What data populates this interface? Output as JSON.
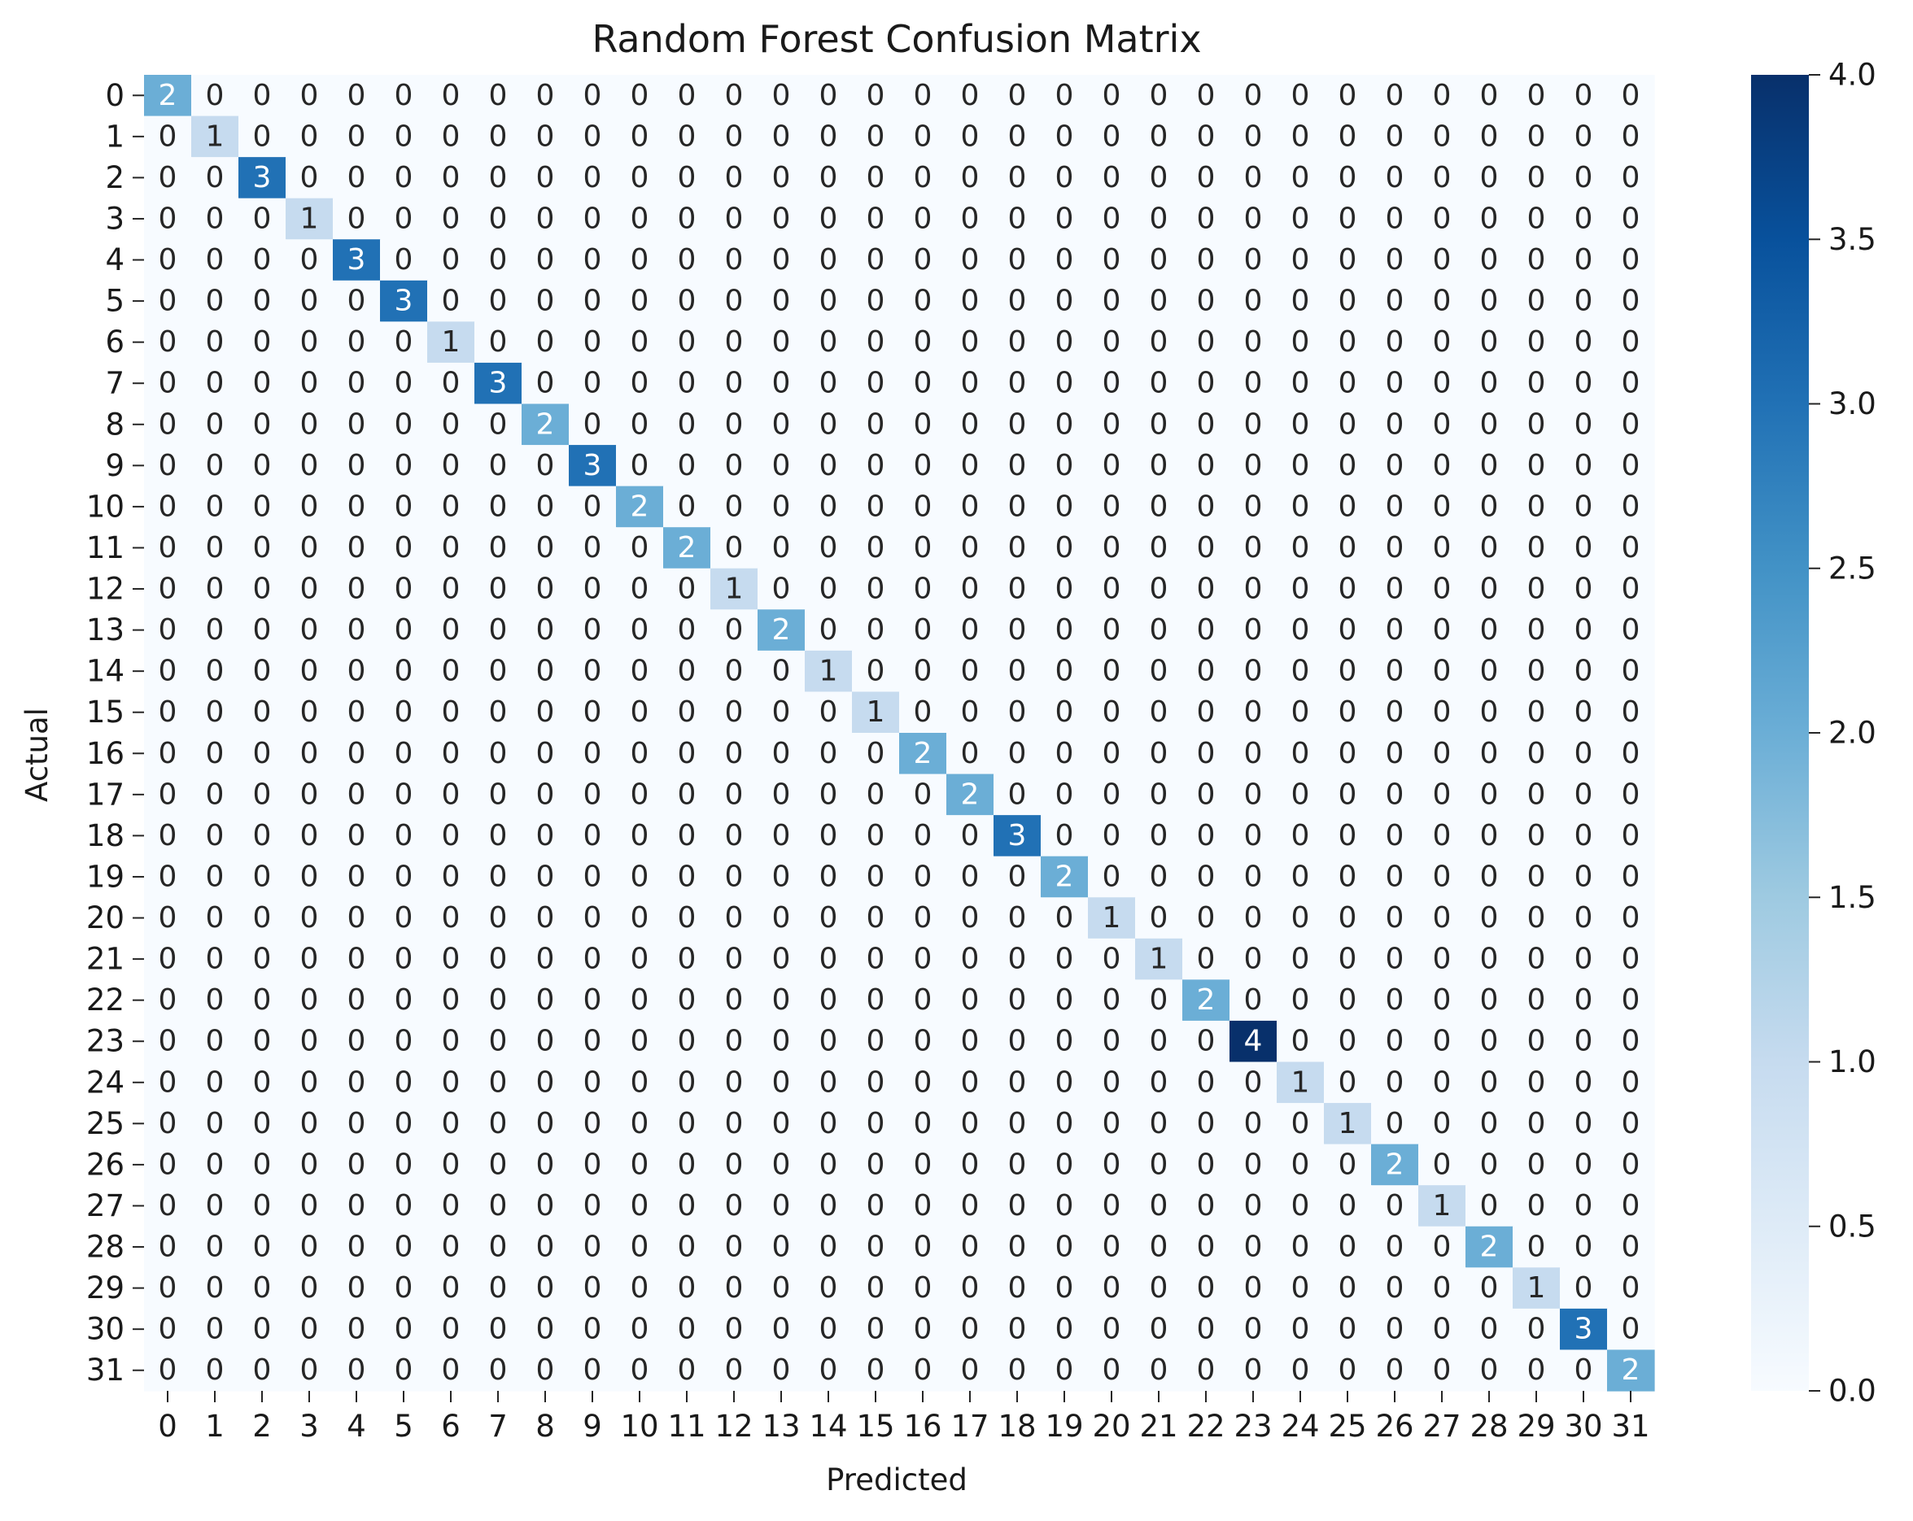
{
  "chart_data": {
    "type": "heatmap",
    "title": "Random Forest Confusion Matrix",
    "xlabel": "Predicted",
    "ylabel": "Actual",
    "x_categories": [
      "0",
      "1",
      "2",
      "3",
      "4",
      "5",
      "6",
      "7",
      "8",
      "9",
      "10",
      "11",
      "12",
      "13",
      "14",
      "15",
      "16",
      "17",
      "18",
      "19",
      "20",
      "21",
      "22",
      "23",
      "24",
      "25",
      "26",
      "27",
      "28",
      "29",
      "30",
      "31"
    ],
    "y_categories": [
      "0",
      "1",
      "2",
      "3",
      "4",
      "5",
      "6",
      "7",
      "8",
      "9",
      "10",
      "11",
      "12",
      "13",
      "14",
      "15",
      "16",
      "17",
      "18",
      "19",
      "20",
      "21",
      "22",
      "23",
      "24",
      "25",
      "26",
      "27",
      "28",
      "29",
      "30",
      "31"
    ],
    "diagonal_values": [
      2,
      1,
      3,
      1,
      3,
      3,
      1,
      3,
      2,
      3,
      2,
      2,
      1,
      2,
      1,
      1,
      2,
      2,
      3,
      2,
      1,
      1,
      2,
      4,
      1,
      1,
      2,
      1,
      2,
      1,
      3,
      2
    ],
    "off_diagonal_value": 0,
    "colorbar": {
      "min": 0.0,
      "max": 4.0,
      "ticks": [
        "0.0",
        "0.5",
        "1.0",
        "1.5",
        "2.0",
        "2.5",
        "3.0",
        "3.5",
        "4.0"
      ],
      "colormap": "Blues"
    }
  }
}
